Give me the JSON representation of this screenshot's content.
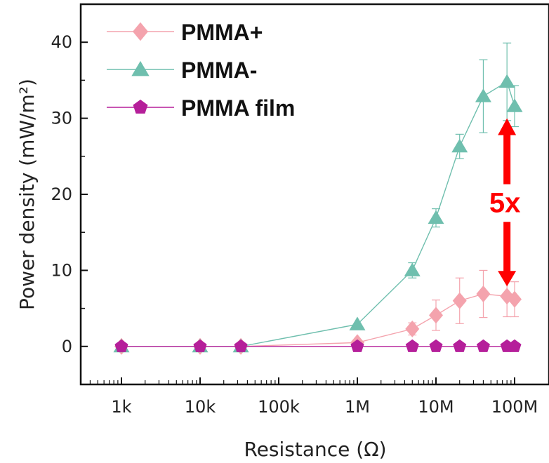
{
  "chart_data": {
    "type": "line",
    "title": "",
    "xlabel": "Resistance (Ω)",
    "ylabel": "Power density (mW/m²)",
    "xscale": "log",
    "xlim": [
      300,
      150000000
    ],
    "ylim": [
      -5,
      45
    ],
    "x_ticks": [
      {
        "value": 1000,
        "label": "1k"
      },
      {
        "value": 10000,
        "label": "10k"
      },
      {
        "value": 100000,
        "label": "100k"
      },
      {
        "value": 1000000,
        "label": "1M"
      },
      {
        "value": 10000000,
        "label": "10M"
      },
      {
        "value": 100000000,
        "label": "100M"
      }
    ],
    "y_ticks": [
      0,
      10,
      20,
      30,
      40
    ],
    "legend_position": "top-left",
    "grid": false,
    "series": [
      {
        "name": "PMMA+",
        "color": "#f4a3ad",
        "marker": "diamond",
        "x": [
          1000,
          10000,
          33000,
          1000000,
          5000000,
          10000000,
          20000000,
          40000000,
          80000000,
          100000000
        ],
        "y": [
          0,
          0,
          0,
          0.5,
          2.3,
          4.1,
          6.0,
          6.9,
          6.6,
          6.2
        ],
        "error": [
          0,
          0,
          0,
          0,
          0.8,
          2.0,
          3.0,
          3.1,
          2.7,
          2.3
        ]
      },
      {
        "name": "PMMA-",
        "color": "#6fbfae",
        "marker": "triangle",
        "x": [
          1000,
          10000,
          33000,
          1000000,
          5000000,
          10000000,
          20000000,
          40000000,
          80000000,
          100000000
        ],
        "y": [
          0,
          0,
          0,
          2.9,
          10.0,
          16.9,
          26.3,
          32.9,
          34.8,
          31.6
        ],
        "error": [
          0,
          0,
          0,
          0,
          1.0,
          1.2,
          1.6,
          4.8,
          5.1,
          2.7
        ]
      },
      {
        "name": "PMMA film",
        "color": "#b51f9a",
        "marker": "pentagon",
        "x": [
          1000,
          10000,
          33000,
          1000000,
          5000000,
          10000000,
          20000000,
          40000000,
          80000000,
          100000000
        ],
        "y": [
          0,
          0,
          0,
          0,
          0,
          0,
          0,
          0,
          0,
          0
        ],
        "error": [
          0,
          0,
          0,
          0,
          0,
          0,
          0,
          0,
          0,
          0
        ]
      }
    ],
    "annotations": [
      {
        "text": "5x",
        "color": "#ff0000",
        "arrow_x": 80000000,
        "arrow_from_y": 6.6,
        "arrow_to_y": 30
      }
    ]
  }
}
